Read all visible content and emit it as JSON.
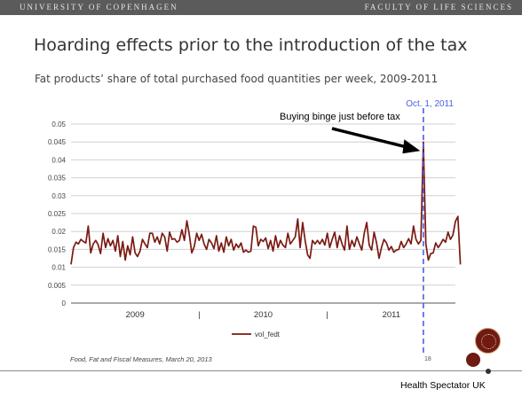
{
  "header": {
    "left": "UNIVERSITY OF COPENHAGEN",
    "right": "FACULTY OF LIFE SCIENCES"
  },
  "slide": {
    "title": "Hoarding effects prior to the introduction of the tax",
    "footer": "Food, Fat and Fiscal Measures, March 20, 2013",
    "page_number": "18",
    "credit": "Health Spectator UK"
  },
  "colors": {
    "series": "#7a1a12",
    "tax_line": "#4a5ee6",
    "grid": "#d0d0d0",
    "arrow": "#000000"
  },
  "chart_data": {
    "type": "line",
    "title": "Fat products’ share of total purchased food quantities per week, 2009-2011",
    "ylim": [
      0,
      0.05
    ],
    "yticks": [
      "0.05",
      "0.045",
      "0.04",
      "0.035",
      "0.03",
      "0.025",
      "0.02",
      "0.015",
      "0.01",
      "0.005",
      "0"
    ],
    "x_range_weeks": [
      0,
      156
    ],
    "xtick_labels": [
      {
        "label": "2009",
        "week": 26
      },
      {
        "label": "|",
        "week": 52
      },
      {
        "label": "2010",
        "week": 78
      },
      {
        "label": "|",
        "week": 104
      },
      {
        "label": "2011",
        "week": 130
      }
    ],
    "grid": true,
    "legend": "vol_fedt",
    "marker_line": {
      "label": "Oct. 1, 2011",
      "week": 143
    },
    "annotation": {
      "text": "Buying binge just before tax",
      "week": 141,
      "value": 0.0425
    },
    "series": [
      {
        "name": "vol_fedt",
        "values": [
          0.0108,
          0.0155,
          0.017,
          0.0165,
          0.0178,
          0.0172,
          0.0168,
          0.0215,
          0.014,
          0.0165,
          0.0175,
          0.0163,
          0.0138,
          0.0195,
          0.0155,
          0.018,
          0.016,
          0.0175,
          0.0145,
          0.0188,
          0.013,
          0.0172,
          0.012,
          0.016,
          0.0135,
          0.0185,
          0.014,
          0.013,
          0.0145,
          0.0178,
          0.0165,
          0.0155,
          0.0195,
          0.0195,
          0.017,
          0.0185,
          0.0165,
          0.0195,
          0.0185,
          0.0145,
          0.0198,
          0.0178,
          0.018,
          0.017,
          0.0175,
          0.0205,
          0.0175,
          0.023,
          0.0192,
          0.014,
          0.0158,
          0.0195,
          0.0175,
          0.0192,
          0.0165,
          0.015,
          0.0178,
          0.0168,
          0.0152,
          0.0188,
          0.0145,
          0.0168,
          0.0142,
          0.0185,
          0.016,
          0.0178,
          0.0148,
          0.0165,
          0.0155,
          0.0168,
          0.0142,
          0.0148,
          0.0142,
          0.0145,
          0.0215,
          0.0212,
          0.016,
          0.0178,
          0.0172,
          0.0182,
          0.0152,
          0.0175,
          0.0145,
          0.0188,
          0.0155,
          0.0175,
          0.0162,
          0.0155,
          0.0195,
          0.0165,
          0.0175,
          0.0185,
          0.0235,
          0.0155,
          0.0225,
          0.0175,
          0.0135,
          0.0125,
          0.0175,
          0.0165,
          0.0175,
          0.0165,
          0.0178,
          0.0162,
          0.0195,
          0.0155,
          0.0178,
          0.0198,
          0.0155,
          0.0188,
          0.0165,
          0.0148,
          0.0215,
          0.015,
          0.0175,
          0.0158,
          0.0185,
          0.0165,
          0.0148,
          0.0195,
          0.0225,
          0.0162,
          0.0148,
          0.0198,
          0.0168,
          0.0125,
          0.0155,
          0.0178,
          0.0168,
          0.0148,
          0.0158,
          0.0142,
          0.0148,
          0.015,
          0.0172,
          0.0155,
          0.0165,
          0.018,
          0.0165,
          0.0215,
          0.0178,
          0.0165,
          0.0175,
          0.045,
          0.0165,
          0.012,
          0.0138,
          0.014,
          0.0168,
          0.0155,
          0.0165,
          0.0178,
          0.017,
          0.0198,
          0.0178,
          0.019,
          0.0228,
          0.0242,
          0.0108
        ]
      }
    ]
  }
}
